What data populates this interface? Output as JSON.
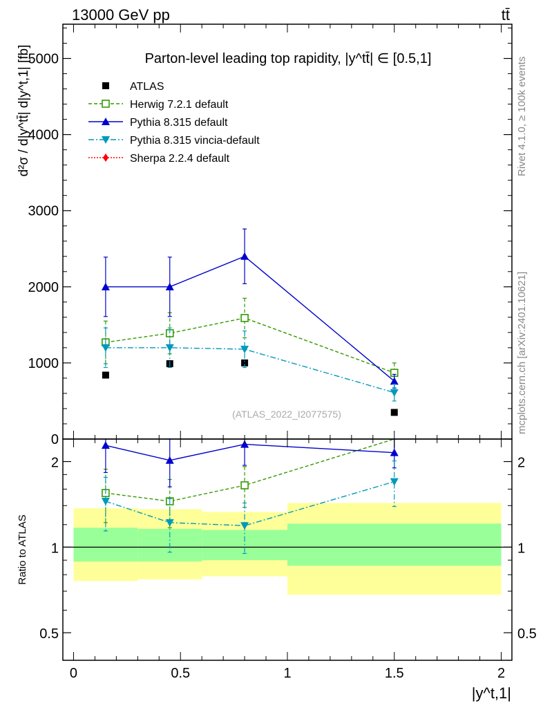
{
  "header": {
    "energy_label": "13000 GeV pp",
    "process_label": "tt̄"
  },
  "side_labels": {
    "rivet": "Rivet 4.1.0, ≥ 100k events",
    "mcplots": "mcplots.cern.ch [arXiv:2401.10621]"
  },
  "watermark": "(ATLAS_2022_I2077575)",
  "chart_data": [
    {
      "type": "line",
      "panel": "main",
      "title": "Parton-level leading top rapidity, |y^tt̄| ∈ [0.5,1]",
      "ylabel": "d²σ / d|y^tt̄| d|y^t,1| [fb]",
      "xlabel": "|y^t,1|",
      "xlim": [
        -0.05,
        2.05
      ],
      "ylim": [
        0,
        5450
      ],
      "yticks": [
        {
          "v": 0,
          "label": "0"
        },
        {
          "v": 1000,
          "label": "1000"
        },
        {
          "v": 2000,
          "label": "2000"
        },
        {
          "v": 3000,
          "label": "3000"
        },
        {
          "v": 4000,
          "label": "4000"
        },
        {
          "v": 5000,
          "label": "5000"
        }
      ],
      "series": [
        {
          "name": "ATLAS",
          "color": "#000000",
          "marker": "square",
          "style": "none",
          "x": [
            0.15,
            0.45,
            0.8,
            1.5
          ],
          "y": [
            840,
            990,
            1000,
            350
          ],
          "err": [
            0,
            0,
            0,
            0
          ]
        },
        {
          "name": "Herwig 7.2.1 default",
          "color": "#339900",
          "marker": "open-square",
          "style": "dashed",
          "x": [
            0.15,
            0.45,
            0.8,
            1.5
          ],
          "y": [
            1270,
            1390,
            1590,
            870
          ],
          "err": [
            280,
            270,
            260,
            130
          ]
        },
        {
          "name": "Pythia 8.315 default",
          "color": "#0000cc",
          "marker": "triangle-up",
          "style": "solid",
          "x": [
            0.15,
            0.45,
            0.8,
            1.5
          ],
          "y": [
            2000,
            2000,
            2400,
            760
          ],
          "err": [
            390,
            390,
            360,
            90
          ]
        },
        {
          "name": "Pythia 8.315 vincia-default",
          "color": "#0099bb",
          "marker": "triangle-down",
          "style": "dashdot",
          "x": [
            0.15,
            0.45,
            0.8,
            1.5
          ],
          "y": [
            1200,
            1200,
            1180,
            610
          ],
          "err": [
            260,
            260,
            240,
            110
          ]
        },
        {
          "name": "Sherpa 2.2.4 default",
          "color": "#ff0000",
          "marker": "diamond",
          "style": "dotted",
          "x": [],
          "y": [],
          "err": []
        }
      ]
    },
    {
      "type": "line",
      "panel": "ratio",
      "ylabel": "Ratio to ATLAS",
      "xlabel": "|y^t,1|",
      "xlim": [
        -0.05,
        2.05
      ],
      "ylim": [
        0.4,
        2.4
      ],
      "yticks": [
        {
          "v": 0.5,
          "label": "0.5"
        },
        {
          "v": 1,
          "label": "1"
        },
        {
          "v": 2,
          "label": "2"
        }
      ],
      "xticks": [
        {
          "v": 0,
          "label": "0"
        },
        {
          "v": 0.5,
          "label": "0.5"
        },
        {
          "v": 1,
          "label": "1"
        },
        {
          "v": 1.5,
          "label": "1.5"
        },
        {
          "v": 2,
          "label": "2"
        }
      ],
      "bands": [
        {
          "x0": 0,
          "x1": 0.3,
          "yellow": [
            0.76,
            1.37
          ],
          "green": [
            0.89,
            1.17
          ]
        },
        {
          "x0": 0.3,
          "x1": 0.6,
          "yellow": [
            0.77,
            1.36
          ],
          "green": [
            0.89,
            1.16
          ]
        },
        {
          "x0": 0.6,
          "x1": 1.0,
          "yellow": [
            0.79,
            1.33
          ],
          "green": [
            0.9,
            1.15
          ]
        },
        {
          "x0": 1.0,
          "x1": 2.0,
          "yellow": [
            0.68,
            1.43
          ],
          "green": [
            0.86,
            1.21
          ]
        }
      ],
      "series": [
        {
          "name": "Herwig 7.2.1 default",
          "color": "#339900",
          "marker": "open-square",
          "style": "dashed",
          "x": [
            0.15,
            0.45,
            0.8,
            1.5
          ],
          "y": [
            1.55,
            1.45,
            1.65,
            2.42
          ],
          "err": [
            0.33,
            0.28,
            0.27,
            0.3
          ]
        },
        {
          "name": "Pythia 8.315 default",
          "color": "#0000cc",
          "marker": "triangle-up",
          "style": "solid",
          "x": [
            0.15,
            0.45,
            0.8,
            1.5
          ],
          "y": [
            2.28,
            2.02,
            2.3,
            2.15
          ],
          "err": [
            0.45,
            0.39,
            0.36,
            0.25
          ]
        },
        {
          "name": "Pythia 8.315 vincia-default",
          "color": "#0099bb",
          "marker": "triangle-down",
          "style": "dashdot",
          "x": [
            0.15,
            0.45,
            0.8,
            1.5
          ],
          "y": [
            1.45,
            1.22,
            1.19,
            1.7
          ],
          "err": [
            0.31,
            0.26,
            0.24,
            0.31
          ]
        }
      ]
    }
  ]
}
